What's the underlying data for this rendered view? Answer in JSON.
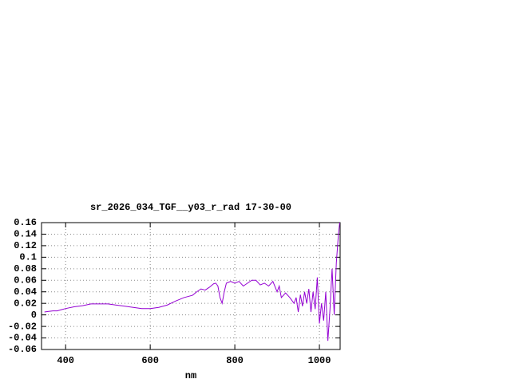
{
  "chart_data": {
    "type": "line",
    "title": "sr_2026_034_TGF__y03_r_rad 17-30-00",
    "x_label": "nm",
    "x": [
      350,
      360,
      370,
      380,
      390,
      400,
      420,
      440,
      460,
      480,
      500,
      520,
      540,
      560,
      580,
      600,
      620,
      640,
      660,
      680,
      700,
      710,
      720,
      730,
      740,
      750,
      755,
      760,
      765,
      770,
      775,
      780,
      790,
      800,
      810,
      820,
      830,
      840,
      850,
      860,
      870,
      880,
      890,
      900,
      905,
      910,
      920,
      930,
      940,
      945,
      950,
      955,
      960,
      965,
      970,
      975,
      980,
      985,
      990,
      995,
      1000,
      1005,
      1010,
      1015,
      1020,
      1025,
      1030,
      1035,
      1040,
      1045,
      1048
    ],
    "values": [
      0.005,
      0.006,
      0.007,
      0.007,
      0.009,
      0.011,
      0.014,
      0.016,
      0.019,
      0.019,
      0.019,
      0.017,
      0.015,
      0.013,
      0.011,
      0.011,
      0.013,
      0.017,
      0.024,
      0.03,
      0.034,
      0.04,
      0.045,
      0.043,
      0.048,
      0.054,
      0.055,
      0.05,
      0.03,
      0.02,
      0.04,
      0.055,
      0.058,
      0.055,
      0.058,
      0.05,
      0.055,
      0.06,
      0.06,
      0.052,
      0.055,
      0.05,
      0.058,
      0.04,
      0.05,
      0.03,
      0.038,
      0.03,
      0.02,
      0.03,
      0.005,
      0.035,
      0.015,
      0.04,
      0.02,
      0.045,
      0.005,
      0.04,
      0.01,
      0.065,
      -0.015,
      0.02,
      -0.01,
      0.04,
      -0.045,
      0.01,
      0.08,
      0.0,
      0.09,
      0.14,
      0.16
    ],
    "color": "#9400d3",
    "xlim": [
      343,
      1049
    ],
    "ylim": [
      -0.06,
      0.16
    ],
    "xticks": [
      400,
      600,
      800,
      1000
    ],
    "yticks": [
      0.16,
      0.14,
      0.12,
      0.1,
      0.08,
      0.06,
      0.04,
      0.02,
      0,
      -0.02,
      -0.04,
      -0.06
    ],
    "grid": true
  }
}
